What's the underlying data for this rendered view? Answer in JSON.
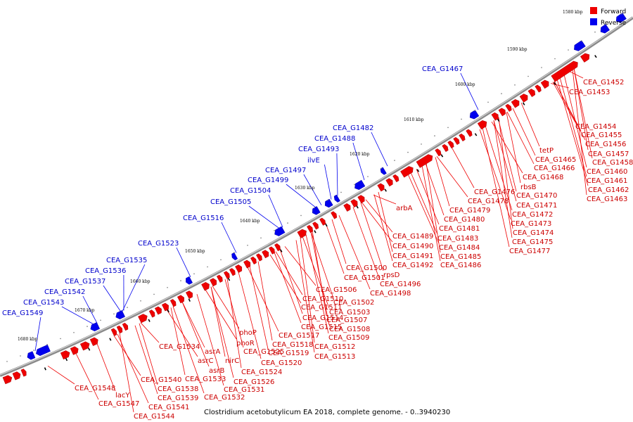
{
  "caption": "Clostridium acetobutylicum EA 2018, complete genome. - 0..3940230",
  "legend": [
    {
      "label": "Forward",
      "color": "#ee0000"
    },
    {
      "label": "Reverse",
      "color": "#0000ee"
    }
  ],
  "colors": {
    "forward": "#ee0000",
    "reverse": "#0000ee",
    "backbone": "#8a8a8a"
  },
  "ticks": [
    "1580 kbp",
    "1590 kbp",
    "1600 kbp",
    "1610 kbp",
    "1620 kbp",
    "1630 kbp",
    "1640 kbp",
    "1650 kbp",
    "1660 kbp",
    "1670 kbp",
    "1680 kbp"
  ],
  "forward_labels": [
    "CEA_G1452",
    "CEA_G1453",
    "CEA_G1454",
    "CEA_G1455",
    "CEA_G1456",
    "CEA_G1457",
    "CEA_G1458",
    "CEA_G1460",
    "CEA_G1461",
    "CEA_G1462",
    "CEA_G1463",
    "tetP",
    "CEA_G1465",
    "CEA_G1466",
    "CEA_G1468",
    "rbsB",
    "CEA_G1470",
    "CEA_G1471",
    "CEA_G1472",
    "CEA_G1473",
    "CEA_G1474",
    "CEA_G1475",
    "CEA_G1476",
    "CEA_G1477",
    "CEA_G1478",
    "CEA_G1479",
    "CEA_G1480",
    "CEA_G1481",
    "CEA_G1483",
    "CEA_G1484",
    "CEA_G1485",
    "CEA_G1486",
    "arbA",
    "CEA_G1489",
    "CEA_G1490",
    "CEA_G1491",
    "CEA_G1492",
    "rpsD",
    "CEA_G1496",
    "CEA_G1498",
    "CEA_G1500",
    "CEA_G1501",
    "CEA_G1502",
    "CEA_G1503",
    "CEA_G1506",
    "CEA_G1507",
    "CEA_G1508",
    "CEA_G1509",
    "CEA_G1510",
    "CEA_G1511",
    "CEA_G1512",
    "CEA_G1513",
    "CEA_G1514",
    "CEA_G1515",
    "CEA_G1517",
    "CEA_G1518",
    "CEA_G1519",
    "CEA_G1520",
    "phoP",
    "phoR",
    "CEA_G1524",
    "CEA_G1525",
    "CEA_G1526",
    "CEA_G1531",
    "CEA_G1532",
    "CEA_G1533",
    "CEA_G1534",
    "asrA",
    "asrB",
    "asrC",
    "nirC",
    "CEA_G1538",
    "CEA_G1539",
    "CEA_G1540",
    "CEA_G1541",
    "CEA_G1544",
    "lacY",
    "CEA_G1547",
    "CEA_G1548"
  ],
  "reverse_labels": [
    "CEA_G1467",
    "CEA_G1482",
    "CEA_G1488",
    "CEA_G1493",
    "ilvE",
    "CEA_G1497",
    "CEA_G1499",
    "CEA_G1504",
    "CEA_G1505",
    "CEA_G1516",
    "CEA_G1523",
    "CEA_G1535",
    "CEA_G1536",
    "CEA_G1537",
    "CEA_G1542",
    "CEA_G1543",
    "CEA_G1549"
  ]
}
